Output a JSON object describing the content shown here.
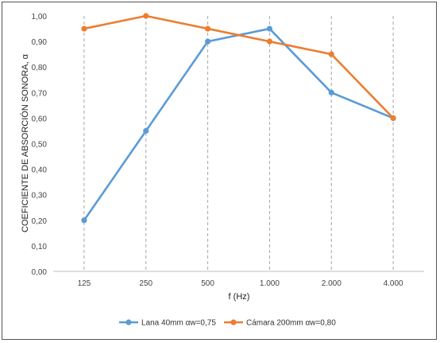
{
  "chart_data": {
    "type": "line",
    "title": "",
    "xlabel": "f (Hz)",
    "ylabel": "COEFICIENTE DE ABSORCIÓN SONORA, α",
    "categories": [
      "125",
      "250",
      "500",
      "1.000",
      "2.000",
      "4.000"
    ],
    "ylim": [
      0,
      1
    ],
    "yticks": [
      "0,00",
      "0,10",
      "0,20",
      "0,30",
      "0,40",
      "0,50",
      "0,60",
      "0,70",
      "0,80",
      "0,90",
      "1,00"
    ],
    "grid": "vertical-dashed",
    "legend_position": "bottom",
    "series": [
      {
        "name": "Lana 40mm αw=0,75",
        "color": "#5b9bd5",
        "values": [
          0.2,
          0.55,
          0.9,
          0.95,
          0.7,
          0.6
        ]
      },
      {
        "name": "Cámara 200mm αw=0,80",
        "color": "#ed7d31",
        "values": [
          0.95,
          1.0,
          0.95,
          0.9,
          0.85,
          0.6
        ]
      }
    ]
  }
}
